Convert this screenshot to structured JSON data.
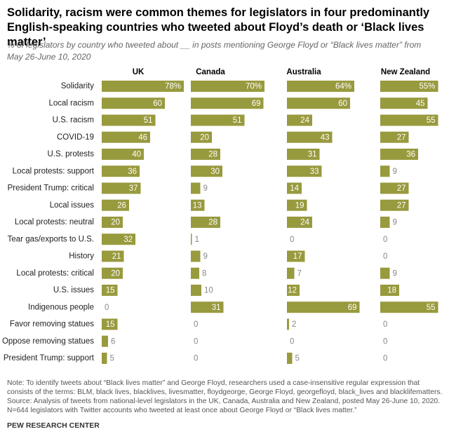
{
  "chart_data": {
    "type": "bar",
    "title": "Solidarity, racism were common themes for legislators in four predominantly English-speaking countries who tweeted about Floyd’s death or ‘Black lives matter’",
    "subtitle": "% of legislators by country who tweeted about __ in posts mentioning George Floyd or “Black lives matter” from May 26-June 10, 2020",
    "categories": [
      "Solidarity",
      "Local racism",
      "U.S. racism",
      "COVID-19",
      "U.S. protests",
      "Local protests: support",
      "President Trump: critical",
      "Local issues",
      "Local protests: neutral",
      "Tear gas/exports to U.S.",
      "History",
      "Local protests: critical",
      "U.S. issues",
      "Indigenous people",
      "Favor removing statues",
      "Oppose removing statues",
      "President Trump: support"
    ],
    "series": [
      {
        "name": "UK",
        "color": "#989a3e",
        "values": [
          78,
          60,
          51,
          46,
          40,
          36,
          37,
          26,
          20,
          32,
          21,
          20,
          15,
          0,
          15,
          6,
          5
        ],
        "value_labels": [
          "78%",
          "60",
          "51",
          "46",
          "40",
          "36",
          "37",
          "26",
          "20",
          "32",
          "21",
          "20",
          "15",
          "0",
          "15",
          "6",
          "5"
        ]
      },
      {
        "name": "Canada",
        "color": "#989a3e",
        "values": [
          70,
          69,
          51,
          20,
          28,
          30,
          9,
          13,
          28,
          1,
          9,
          8,
          10,
          31,
          0,
          0,
          0
        ],
        "value_labels": [
          "70%",
          "69",
          "51",
          "20",
          "28",
          "30",
          "9",
          "13",
          "28",
          "1",
          "9",
          "8",
          "10",
          "31",
          "0",
          "0",
          "0"
        ]
      },
      {
        "name": "Australia",
        "color": "#989a3e",
        "values": [
          64,
          60,
          24,
          43,
          31,
          33,
          14,
          19,
          24,
          0,
          17,
          7,
          12,
          69,
          2,
          0,
          5
        ],
        "value_labels": [
          "64%",
          "60",
          "24",
          "43",
          "31",
          "33",
          "14",
          "19",
          "24",
          "0",
          "17",
          "7",
          "12",
          "69",
          "2",
          "0",
          "5"
        ]
      },
      {
        "name": "New Zealand",
        "color": "#989a3e",
        "values": [
          55,
          45,
          55,
          27,
          36,
          9,
          27,
          27,
          9,
          0,
          0,
          9,
          18,
          55,
          0,
          0,
          0
        ],
        "value_labels": [
          "55%",
          "45",
          "55",
          "27",
          "36",
          "9",
          "27",
          "27",
          "9",
          "0",
          "0",
          "9",
          "18",
          "55",
          "0",
          "0",
          "0"
        ]
      }
    ],
    "note": "Note: To identify tweets about “Black lives matter” and George Floyd, researchers used a case-insensitive regular expression that consists of the terms: BLM, black lives, blacklives, livesmatter, floydgeorge, George Floyd, georgefloyd, black_lives and blacklifematters.",
    "source": "Source: Analysis of tweets from national-level legislators in the UK, Canada, Australia and New Zealand, posted May 26-June 10, 2020.",
    "sample_note": "N=644 legislators with Twitter accounts who tweeted at least once about George Floyd or “Black lives matter.”",
    "credit": "PEW RESEARCH CENTER"
  }
}
